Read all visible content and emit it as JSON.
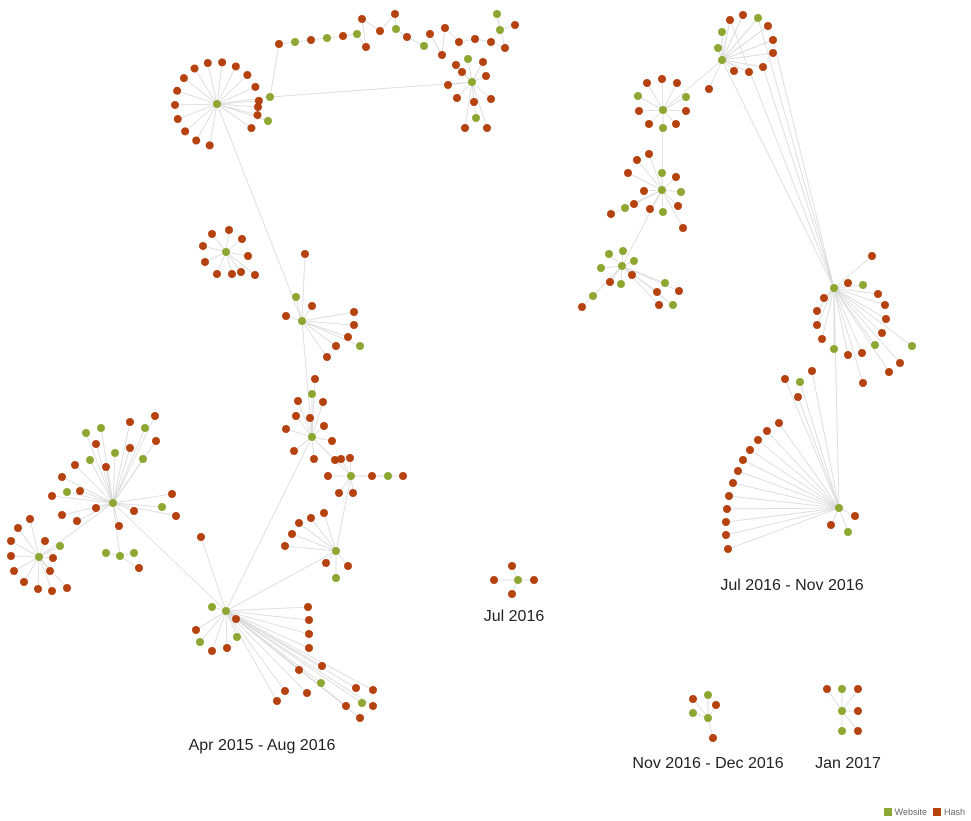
{
  "colors": {
    "website": "#8da832",
    "hash": "#b5420f",
    "edge": "#d9d9d9"
  },
  "legend": {
    "website_label": "Website",
    "hash_label": "Hash"
  },
  "clusters": [
    {
      "id": "c1",
      "label": "Apr 2015 - Aug 2016"
    },
    {
      "id": "c2",
      "label": "Jul 2016"
    },
    {
      "id": "c3",
      "label": "Jul 2016 - Nov 2016"
    },
    {
      "id": "c4",
      "label": "Nov 2016 - Dec 2016"
    },
    {
      "id": "c5",
      "label": "Jan 2017"
    }
  ]
}
